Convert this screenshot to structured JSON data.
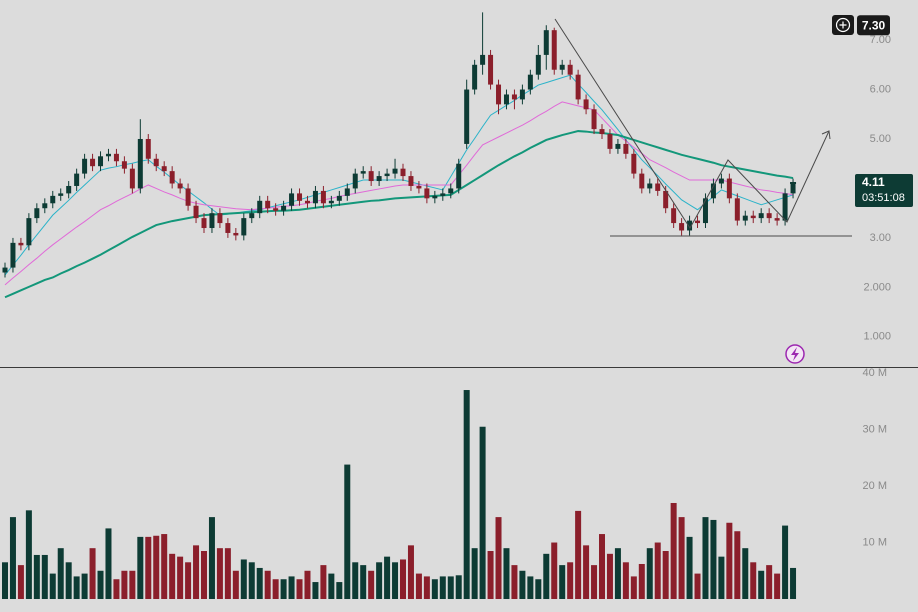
{
  "chart_data": [
    {
      "type": "candlestick",
      "up_color": "#0d3b34",
      "down_color": "#8b1f2b",
      "ylim": [
        0.39,
        7.81
      ],
      "yticks": [
        {
          "value": 7,
          "label": "7.00"
        },
        {
          "value": 6,
          "label": "6.00"
        },
        {
          "value": 5,
          "label": "5.00"
        },
        {
          "value": 3,
          "label": "3.00"
        },
        {
          "value": 2,
          "label": "2.000"
        },
        {
          "value": 1,
          "label": "1.000"
        }
      ],
      "price_badge": {
        "value": 7.3,
        "label": "7.30"
      },
      "last_price": 4.11,
      "countdown": "03:51:08",
      "open": [
        2.3,
        2.4,
        2.9,
        2.85,
        3.4,
        3.6,
        3.7,
        3.85,
        3.9,
        4.05,
        4.3,
        4.6,
        4.45,
        4.65,
        4.7,
        4.55,
        4.4,
        4.0,
        5.0,
        4.6,
        4.45,
        4.35,
        4.1,
        4.0,
        3.65,
        3.4,
        3.2,
        3.5,
        3.3,
        3.1,
        3.05,
        3.4,
        3.5,
        3.75,
        3.6,
        3.55,
        3.65,
        3.9,
        3.75,
        3.7,
        3.95,
        3.7,
        3.75,
        3.85,
        4.0,
        4.3,
        4.35,
        4.15,
        4.25,
        4.3,
        4.4,
        4.25,
        4.05,
        4.0,
        3.8,
        3.85,
        3.9,
        4.0,
        4.9,
        6.0,
        6.5,
        6.7,
        6.1,
        5.7,
        5.9,
        5.8,
        6.0,
        6.3,
        6.7,
        7.2,
        6.4,
        6.5,
        6.3,
        5.8,
        5.6,
        5.2,
        5.1,
        4.8,
        4.9,
        4.7,
        4.3,
        4.0,
        4.1,
        3.95,
        3.6,
        3.3,
        3.15,
        3.35,
        3.3,
        3.8,
        4.1,
        4.2,
        3.8,
        3.35,
        3.45,
        3.4,
        3.5,
        3.4,
        3.35,
        3.9
      ],
      "high": [
        2.5,
        3.0,
        3.0,
        3.5,
        3.7,
        3.8,
        3.95,
        4.0,
        4.15,
        4.4,
        4.7,
        4.7,
        4.75,
        4.8,
        4.8,
        4.65,
        4.5,
        5.4,
        5.1,
        4.7,
        4.55,
        4.45,
        4.2,
        4.1,
        3.75,
        3.5,
        3.6,
        3.6,
        3.4,
        3.2,
        3.5,
        3.6,
        3.85,
        3.85,
        3.7,
        3.75,
        4.0,
        4.0,
        3.85,
        4.05,
        4.05,
        3.85,
        3.95,
        4.1,
        4.4,
        4.45,
        4.45,
        4.35,
        4.4,
        4.6,
        4.5,
        4.35,
        4.15,
        4.1,
        3.95,
        4.0,
        4.1,
        4.6,
        6.2,
        6.6,
        7.56,
        6.8,
        6.2,
        6.0,
        6.0,
        6.1,
        6.4,
        6.9,
        7.3,
        7.25,
        6.6,
        6.6,
        6.4,
        5.9,
        5.7,
        5.3,
        5.2,
        5.0,
        5.0,
        4.8,
        4.4,
        4.2,
        4.2,
        4.05,
        3.7,
        3.4,
        3.45,
        3.45,
        3.9,
        4.2,
        4.3,
        4.3,
        3.9,
        3.55,
        3.55,
        3.6,
        3.6,
        3.5,
        4.0,
        4.2
      ],
      "low": [
        2.2,
        2.3,
        2.75,
        2.75,
        3.3,
        3.5,
        3.6,
        3.75,
        3.8,
        3.95,
        4.2,
        4.35,
        4.35,
        4.55,
        4.45,
        4.3,
        3.9,
        3.9,
        4.5,
        4.35,
        4.25,
        4.0,
        3.9,
        3.55,
        3.3,
        3.1,
        3.1,
        3.2,
        3.0,
        2.95,
        2.95,
        3.3,
        3.4,
        3.5,
        3.45,
        3.45,
        3.55,
        3.65,
        3.6,
        3.6,
        3.6,
        3.6,
        3.65,
        3.75,
        3.9,
        4.2,
        4.05,
        4.05,
        4.15,
        4.2,
        4.15,
        3.95,
        3.9,
        3.7,
        3.7,
        3.75,
        3.8,
        3.9,
        4.8,
        5.9,
        6.3,
        6.0,
        5.5,
        5.6,
        5.6,
        5.7,
        5.9,
        6.2,
        6.4,
        6.3,
        6.3,
        6.2,
        5.7,
        5.5,
        5.1,
        5.0,
        4.7,
        4.7,
        4.6,
        4.2,
        3.9,
        3.9,
        3.85,
        3.5,
        3.2,
        3.05,
        3.05,
        3.2,
        3.2,
        3.7,
        4.0,
        3.7,
        3.25,
        3.25,
        3.3,
        3.3,
        3.3,
        3.25,
        3.25,
        3.8
      ],
      "close": [
        2.4,
        2.9,
        2.85,
        3.4,
        3.6,
        3.7,
        3.85,
        3.9,
        4.05,
        4.3,
        4.6,
        4.45,
        4.65,
        4.7,
        4.55,
        4.4,
        4.0,
        5.0,
        4.6,
        4.45,
        4.35,
        4.1,
        4.0,
        3.65,
        3.4,
        3.2,
        3.5,
        3.3,
        3.1,
        3.05,
        3.4,
        3.5,
        3.75,
        3.6,
        3.55,
        3.65,
        3.9,
        3.75,
        3.7,
        3.95,
        3.7,
        3.75,
        3.85,
        4.0,
        4.3,
        4.35,
        4.15,
        4.25,
        4.3,
        4.4,
        4.25,
        4.05,
        4.0,
        3.8,
        3.85,
        3.9,
        4.0,
        4.5,
        6.0,
        6.5,
        6.7,
        6.1,
        5.7,
        5.9,
        5.8,
        6.0,
        6.3,
        6.7,
        7.2,
        6.4,
        6.5,
        6.3,
        5.8,
        5.6,
        5.2,
        5.1,
        4.8,
        4.9,
        4.7,
        4.3,
        4.0,
        4.1,
        3.95,
        3.6,
        3.3,
        3.15,
        3.35,
        3.3,
        3.8,
        4.1,
        4.2,
        3.8,
        3.35,
        3.45,
        3.4,
        3.5,
        3.4,
        3.35,
        3.9,
        4.11
      ],
      "lines": [
        {
          "color": "#2bb3c9",
          "values": [
            2.25,
            2.45,
            2.65,
            2.86,
            3.06,
            3.26,
            3.46,
            3.61,
            3.76,
            3.92,
            4.07,
            4.22,
            4.37,
            4.41,
            4.44,
            4.48,
            4.51,
            4.55,
            4.58,
            4.45,
            4.33,
            4.2,
            4.07,
            3.95,
            3.83,
            3.71,
            3.58,
            3.46,
            3.48,
            3.5,
            3.53,
            3.55,
            3.57,
            3.61,
            3.65,
            3.69,
            3.73,
            3.77,
            3.82,
            3.87,
            3.92,
            3.97,
            4.02,
            4.07,
            4.12,
            4.17,
            4.17,
            4.17,
            4.17,
            4.17,
            4.17,
            4.13,
            4.09,
            4.05,
            4.01,
            3.97,
            4.24,
            4.51,
            4.78,
            5.01,
            5.25,
            5.48,
            5.58,
            5.68,
            5.78,
            5.89,
            5.99,
            6.09,
            6.14,
            6.19,
            6.24,
            6.29,
            6.11,
            5.94,
            5.76,
            5.59,
            5.39,
            5.19,
            4.98,
            4.78,
            4.58,
            4.42,
            4.26,
            4.09,
            3.93,
            3.77,
            3.67,
            3.57,
            3.7,
            3.84,
            3.97,
            3.91,
            3.85,
            3.79,
            3.73,
            3.67,
            3.72,
            3.77,
            3.82,
            3.87
          ]
        },
        {
          "color": "#e06ad8",
          "values": [
            2.05,
            2.19,
            2.32,
            2.46,
            2.59,
            2.73,
            2.86,
            2.98,
            3.1,
            3.22,
            3.33,
            3.45,
            3.57,
            3.65,
            3.74,
            3.82,
            3.9,
            3.99,
            4.07,
            4.0,
            3.93,
            3.87,
            3.8,
            3.74,
            3.7,
            3.67,
            3.65,
            3.63,
            3.61,
            3.59,
            3.58,
            3.57,
            3.59,
            3.6,
            3.62,
            3.64,
            3.65,
            3.67,
            3.7,
            3.74,
            3.77,
            3.8,
            3.84,
            3.87,
            3.9,
            3.93,
            3.96,
            3.99,
            4.02,
            4.05,
            4.07,
            4.07,
            4.07,
            4.07,
            4.07,
            4.07,
            4.07,
            4.27,
            4.47,
            4.68,
            4.88,
            4.96,
            5.04,
            5.12,
            5.2,
            5.28,
            5.37,
            5.47,
            5.56,
            5.66,
            5.75,
            5.71,
            5.67,
            5.63,
            5.59,
            5.42,
            5.25,
            5.08,
            4.96,
            4.83,
            4.71,
            4.58,
            4.5,
            4.42,
            4.33,
            4.25,
            4.17,
            4.17,
            4.17,
            4.17,
            4.17,
            4.13,
            4.09,
            4.05,
            4.01,
            3.97,
            3.95,
            3.92,
            3.9,
            3.87
          ]
        },
        {
          "color": "#13977a",
          "values": [
            1.8,
            1.87,
            1.94,
            2.01,
            2.08,
            2.15,
            2.2,
            2.28,
            2.35,
            2.43,
            2.5,
            2.58,
            2.66,
            2.75,
            2.84,
            2.93,
            3.02,
            3.1,
            3.18,
            3.26,
            3.3,
            3.34,
            3.37,
            3.4,
            3.43,
            3.46,
            3.47,
            3.48,
            3.49,
            3.5,
            3.51,
            3.52,
            3.53,
            3.54,
            3.55,
            3.55,
            3.56,
            3.57,
            3.59,
            3.61,
            3.63,
            3.65,
            3.67,
            3.69,
            3.71,
            3.73,
            3.75,
            3.76,
            3.78,
            3.8,
            3.81,
            3.82,
            3.83,
            3.84,
            3.85,
            3.86,
            3.87,
            3.97,
            4.07,
            4.17,
            4.27,
            4.37,
            4.47,
            4.56,
            4.65,
            4.73,
            4.82,
            4.9,
            4.98,
            5.03,
            5.08,
            5.12,
            5.16,
            5.15,
            5.13,
            5.12,
            5.1,
            5.08,
            5.03,
            4.98,
            4.93,
            4.88,
            4.83,
            4.78,
            4.73,
            4.68,
            4.64,
            4.6,
            4.56,
            4.52,
            4.47,
            4.44,
            4.41,
            4.38,
            4.35,
            4.32,
            4.29,
            4.26,
            4.24,
            4.21
          ]
        }
      ]
    },
    {
      "type": "bar",
      "ylim": [
        -2.3,
        40.9
      ],
      "yticks": [
        {
          "value": 40,
          "label": "40 M"
        },
        {
          "value": 30,
          "label": "30 M"
        },
        {
          "value": 20,
          "label": "20 M"
        },
        {
          "value": 10,
          "label": "10 M"
        }
      ],
      "values": [
        6.5,
        14.5,
        6,
        15.7,
        7.8,
        7.8,
        4.5,
        9,
        6.5,
        4,
        4.5,
        9,
        5,
        12.5,
        3.5,
        5,
        5,
        11,
        11,
        11.2,
        11.5,
        8,
        7.5,
        6.5,
        9.5,
        8.5,
        14.5,
        9,
        9,
        5,
        7,
        6.5,
        5.5,
        5,
        3.5,
        3.5,
        4,
        3.5,
        5,
        3,
        6,
        4.5,
        3,
        23.8,
        6.5,
        6,
        5,
        6.5,
        7.5,
        6.5,
        7,
        9.5,
        4.5,
        4,
        3.5,
        4,
        4,
        4.2,
        37,
        9,
        30.5,
        8.5,
        14.5,
        9,
        6,
        5,
        4,
        3.5,
        8,
        10,
        6,
        6.5,
        15.6,
        9.5,
        6,
        11.5,
        8,
        9,
        6.5,
        4,
        6.2,
        9,
        10,
        8.5,
        17,
        14.5,
        11,
        4.5,
        14.5,
        14,
        7.5,
        13.5,
        12,
        9,
        6.5,
        5,
        6,
        4.5,
        13,
        5.5
      ]
    }
  ]
}
